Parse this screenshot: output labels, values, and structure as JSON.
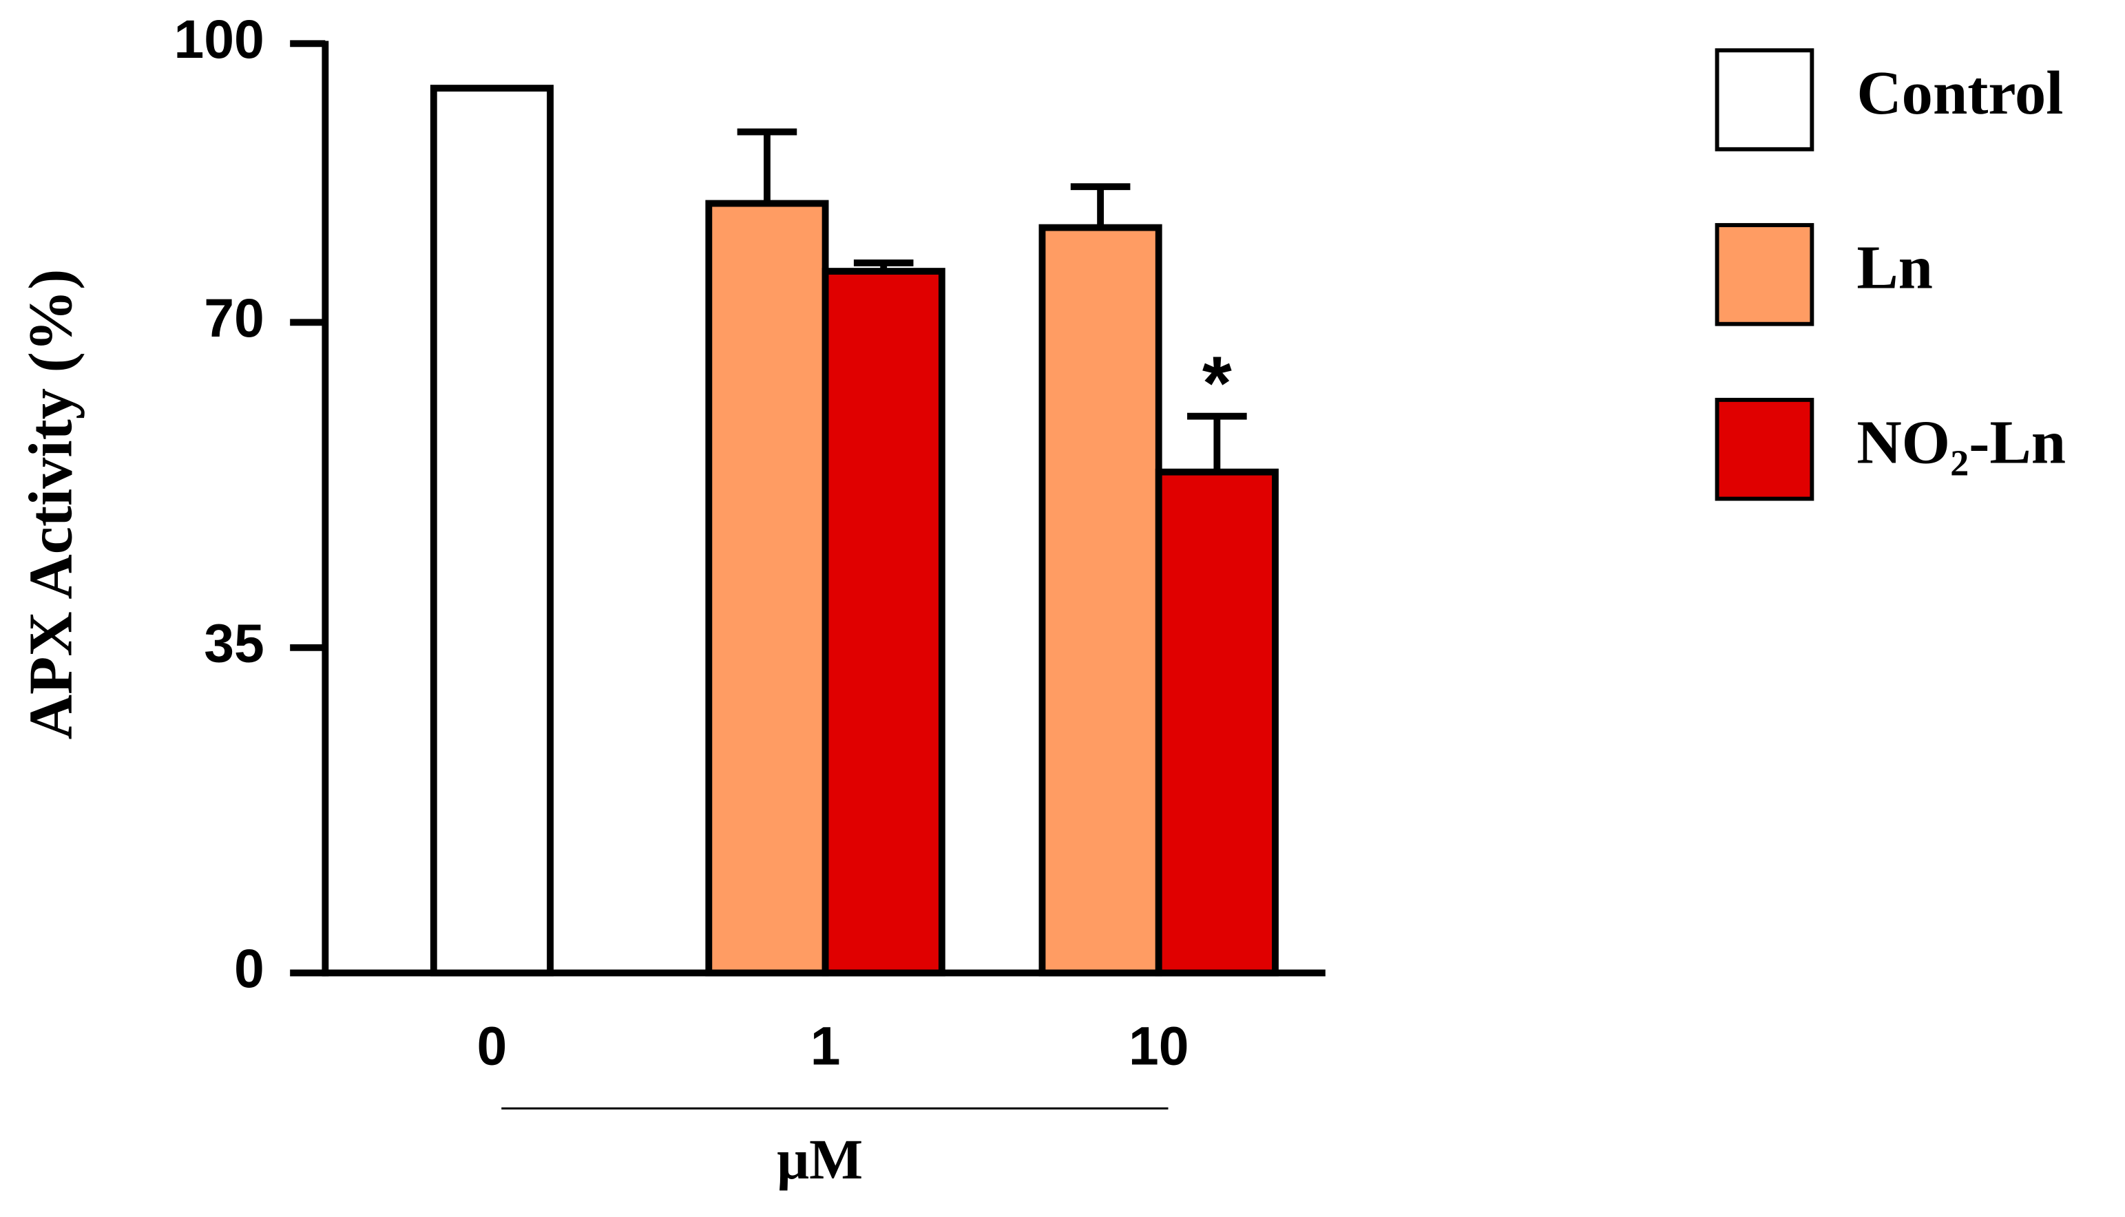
{
  "chart_data": {
    "type": "bar",
    "ylabel": "APX Activity (%)",
    "xlabel": "μM",
    "categories": [
      "0",
      "1",
      "10"
    ],
    "series": [
      {
        "name": "Control",
        "color": "#ffffff",
        "values": [
          95.2,
          null,
          null
        ],
        "errors": [
          null,
          null,
          null
        ]
      },
      {
        "name": "Ln",
        "color": "#ff9c63",
        "values": [
          null,
          82.8,
          80.2
        ],
        "errors": [
          null,
          7.7,
          4.4
        ]
      },
      {
        "name": "NO₂-Ln",
        "color": "#e00000",
        "values": [
          null,
          75.5,
          53.9
        ],
        "errors": [
          null,
          0.9,
          6.0
        ]
      }
    ],
    "annotation": "*",
    "ylim": [
      0,
      100
    ],
    "yticks": [
      0,
      35,
      70,
      100
    ],
    "legend": "top-right"
  }
}
